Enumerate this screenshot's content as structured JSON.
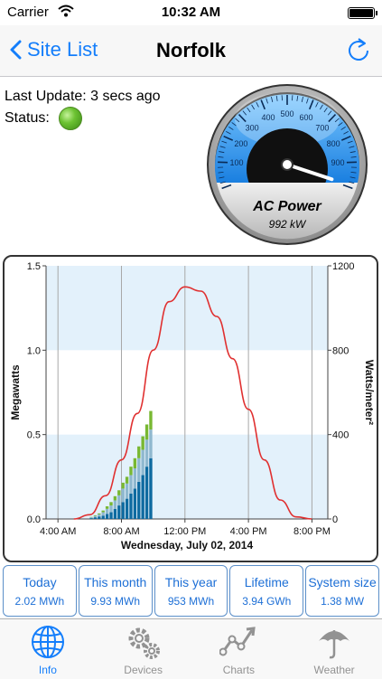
{
  "status_bar": {
    "carrier": "Carrier",
    "time": "10:32 AM"
  },
  "nav": {
    "back_label": "Site List",
    "title": "Norfolk"
  },
  "info": {
    "last_update": "Last Update: 3 secs ago",
    "status_label": "Status:",
    "status_color": "#6cc232"
  },
  "gauge": {
    "title": "AC Power",
    "value_text": "992 kW",
    "value": 992,
    "max": 1000,
    "ticks": [
      "100",
      "200",
      "300",
      "400",
      "500",
      "600",
      "700",
      "800",
      "900"
    ],
    "accent": "#2a8cf0"
  },
  "chart_data": {
    "type": "bar",
    "xlabel": "Wednesday, July 02, 2014",
    "ylabel": "Megawatts",
    "ylabel_right": "Watts/meter²",
    "ylim": [
      0,
      1.5
    ],
    "ylim_right": [
      0,
      1200
    ],
    "y_ticks": [
      "0.0",
      "0.5",
      "1.0",
      "1.5"
    ],
    "y_ticks_right": [
      "0",
      "400",
      "800",
      "1200"
    ],
    "x_ticks": [
      "4:00 AM",
      "8:00 AM",
      "12:00 PM",
      "4:00 PM",
      "8:00 PM"
    ],
    "x_tick_hours": [
      4,
      8,
      12,
      16,
      20
    ],
    "x_range_hours": [
      3.25,
      21
    ],
    "bar_hours": [
      6.0,
      6.25,
      6.5,
      6.75,
      7.0,
      7.25,
      7.5,
      7.75,
      8.0,
      8.25,
      8.5,
      8.75,
      9.0,
      9.25,
      9.5,
      9.75
    ],
    "series": [
      {
        "color": "#0e6aa0",
        "values": [
          0.005,
          0.01,
          0.015,
          0.02,
          0.03,
          0.04,
          0.06,
          0.08,
          0.1,
          0.12,
          0.15,
          0.18,
          0.22,
          0.26,
          0.31,
          0.36
        ]
      },
      {
        "color": "#8fb8cf",
        "values": [
          0.005,
          0.008,
          0.012,
          0.02,
          0.03,
          0.04,
          0.05,
          0.06,
          0.08,
          0.09,
          0.11,
          0.12,
          0.14,
          0.15,
          0.16,
          0.17
        ]
      },
      {
        "color": "#78b832",
        "values": [
          0.002,
          0.004,
          0.006,
          0.01,
          0.015,
          0.02,
          0.025,
          0.03,
          0.035,
          0.04,
          0.05,
          0.06,
          0.07,
          0.08,
          0.09,
          0.11
        ]
      }
    ],
    "irradiance": {
      "color": "#e03030",
      "x_hours": [
        5.0,
        6.0,
        7.0,
        8.0,
        9.0,
        10.0,
        11.0,
        12.0,
        13.0,
        14.0,
        15.0,
        16.0,
        17.0,
        18.0,
        19.0,
        20.0
      ],
      "values": [
        0,
        20,
        110,
        280,
        500,
        800,
        1030,
        1100,
        1080,
        960,
        760,
        520,
        280,
        90,
        10,
        0
      ]
    },
    "shaded_bands": [
      [
        0.0,
        0.5
      ],
      [
        1.0,
        1.5
      ]
    ]
  },
  "stats": [
    {
      "label": "Today",
      "value": "2.02 MWh"
    },
    {
      "label": "This month",
      "value": "9.93 MWh"
    },
    {
      "label": "This year",
      "value": "953 MWh"
    },
    {
      "label": "Lifetime",
      "value": "3.94 GWh"
    },
    {
      "label": "System size",
      "value": "1.38 MW"
    }
  ],
  "tabs": [
    {
      "label": "Info",
      "icon": "globe-icon",
      "active": true
    },
    {
      "label": "Devices",
      "icon": "gears-icon",
      "active": false
    },
    {
      "label": "Charts",
      "icon": "chart-line-icon",
      "active": false
    },
    {
      "label": "Weather",
      "icon": "umbrella-icon",
      "active": false
    }
  ]
}
